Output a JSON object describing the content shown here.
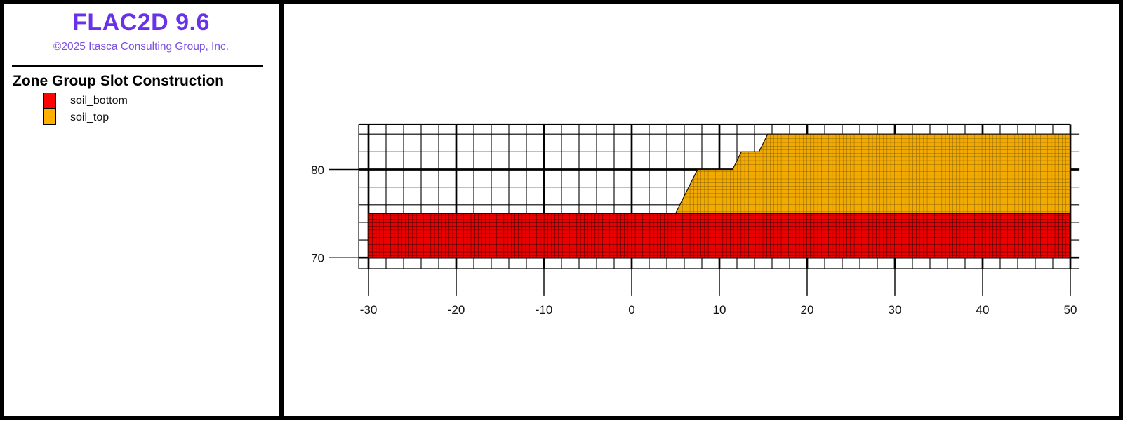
{
  "app": {
    "title": "FLAC2D 9.6",
    "copyright": "©2025 Itasca Consulting Group, Inc.",
    "title_color": "#6732e9",
    "copyright_color": "#7b51e0"
  },
  "legend": {
    "title": "Zone Group Slot Construction",
    "items": [
      {
        "label": "soil_bottom",
        "color": "#fd0303"
      },
      {
        "label": "soil_top",
        "color": "#ffaf00"
      }
    ]
  },
  "chart_data": {
    "type": "mesh",
    "title": "",
    "xlabel": "",
    "ylabel": "",
    "xlim": [
      -31.12,
      51.05
    ],
    "ylim": [
      68.75,
      85.1
    ],
    "model_extent": {
      "x": [
        -30,
        50
      ],
      "y": [
        70,
        84
      ]
    },
    "grid": {
      "on": true,
      "minor_step": 2,
      "major_step": 10,
      "line_color": "#000000"
    },
    "x_ticks": [
      -30,
      -20,
      -10,
      0,
      10,
      20,
      30,
      40,
      50
    ],
    "x_tick_labels": [
      "-30",
      "-20",
      "-10",
      "0",
      "10",
      "20",
      "30",
      "40",
      "50"
    ],
    "y_ticks": [
      70,
      80
    ],
    "y_tick_labels": [
      "70",
      "80"
    ],
    "legend_position": "left-panel",
    "regions": [
      {
        "name": "soil_bottom",
        "fill": "#eb0100",
        "mesh_line_color": "#2a0000",
        "polygon": [
          [
            -30,
            70
          ],
          [
            50,
            70
          ],
          [
            50,
            75
          ],
          [
            -30,
            75
          ]
        ]
      },
      {
        "name": "soil_top",
        "fill": "#f3ab00",
        "mesh_line_color": "#85600a",
        "polygon": [
          [
            5,
            75
          ],
          [
            7.5,
            80
          ],
          [
            11.5,
            80
          ],
          [
            12.5,
            82
          ],
          [
            14.5,
            82
          ],
          [
            15.5,
            84
          ],
          [
            50,
            84
          ],
          [
            50,
            75
          ]
        ]
      }
    ],
    "zone_size_units": 0.4
  }
}
